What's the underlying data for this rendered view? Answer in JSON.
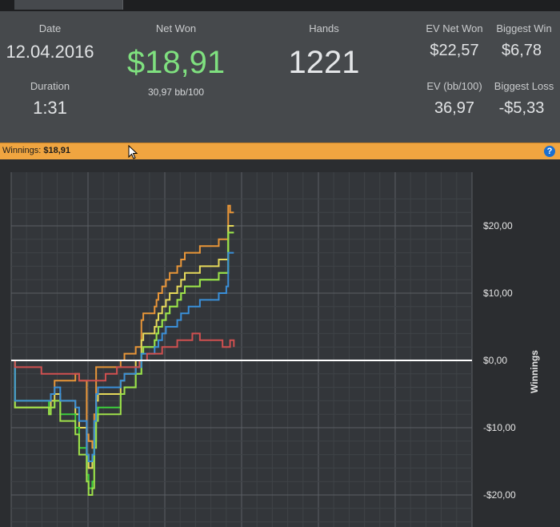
{
  "stats": {
    "date_label": "Date",
    "date_value": "12.04.2016",
    "duration_label": "Duration",
    "duration_value": "1:31",
    "net_won_label": "Net Won",
    "net_won_value": "$18,91",
    "bb_per_100": "30,97 bb/100",
    "hands_label": "Hands",
    "hands_value": "1221",
    "ev_net_won_label": "EV Net Won",
    "ev_net_won_value": "$22,57",
    "biggest_win_label": "Biggest Win",
    "biggest_win_value": "$6,78",
    "ev_bb_label": "EV (bb/100)",
    "ev_bb_value": "36,97",
    "biggest_loss_label": "Biggest Loss",
    "biggest_loss_value": "-$5,33"
  },
  "winnings_bar": {
    "label": "Winnings:",
    "value": "$18,91",
    "help_icon": "?"
  },
  "colors": {
    "orange": "#e89538",
    "yellow": "#e6d95a",
    "green": "#3ccf3c",
    "lightgreen": "#9fe04a",
    "blue": "#3a8fd8",
    "red": "#d05050",
    "zero": "#ffffff"
  },
  "chart_data": {
    "type": "line",
    "ylabel": "Winnings",
    "yticks": [
      "$20,00",
      "$10,00",
      "$0,00",
      "-$10,00",
      "-$20,00"
    ],
    "ylim": [
      -21,
      24
    ],
    "xlim": [
      0,
      1221
    ],
    "grid": true,
    "series": [
      {
        "color_key": "orange",
        "x": [
          0,
          10,
          100,
          105,
          115,
          130,
          170,
          180,
          200,
          205,
          215,
          220,
          225,
          230,
          290,
          300,
          330,
          345,
          350,
          360,
          380,
          385,
          390,
          400,
          410,
          420,
          440,
          450,
          460,
          470,
          500,
          520,
          550,
          560,
          570,
          575,
          580,
          590
        ],
        "y": [
          0,
          -6,
          -6,
          -5,
          -3,
          -3,
          -2,
          -3,
          -11,
          -12,
          -13,
          -8,
          -1,
          -1,
          0,
          1,
          2,
          6,
          7,
          7,
          8,
          9,
          10,
          11,
          12,
          13,
          14,
          15,
          16,
          16,
          17,
          17,
          18,
          18,
          18,
          23,
          22,
          22
        ]
      },
      {
        "color_key": "yellow",
        "x": [
          0,
          10,
          100,
          105,
          115,
          130,
          170,
          180,
          200,
          205,
          215,
          220,
          225,
          230,
          290,
          300,
          330,
          345,
          350,
          360,
          380,
          385,
          390,
          400,
          410,
          420,
          440,
          450,
          460,
          470,
          500,
          520,
          550,
          560,
          570,
          575,
          580,
          590
        ],
        "y": [
          0,
          -7,
          -7,
          -6,
          -5,
          -6,
          -8,
          -10,
          -14,
          -16,
          -15,
          -10,
          -6,
          -5,
          -3,
          -2,
          0,
          3,
          4,
          4,
          5,
          6,
          7,
          8,
          9,
          10,
          11,
          12,
          13,
          13,
          14,
          14,
          15,
          15,
          15,
          20,
          20,
          20
        ]
      },
      {
        "color_key": "green",
        "x": [
          0,
          10,
          100,
          105,
          115,
          130,
          170,
          180,
          200,
          205,
          215,
          220,
          225,
          230,
          290,
          300,
          330,
          345,
          350,
          360,
          380,
          385,
          390,
          400,
          410,
          420,
          440,
          450,
          460,
          470,
          500,
          520,
          550,
          560,
          570,
          575,
          580,
          590
        ],
        "y": [
          0,
          -6,
          -8,
          -7,
          -6,
          -8,
          -10,
          -13,
          -17,
          -19,
          -18,
          -12,
          -8,
          -7,
          -5,
          -4,
          -2,
          1,
          2,
          2,
          3,
          4,
          5,
          6,
          7,
          8,
          9,
          10,
          11,
          11,
          12,
          12,
          13,
          13,
          13,
          19,
          19,
          19
        ]
      },
      {
        "color_key": "lightgreen",
        "x": [
          0,
          10,
          100,
          105,
          115,
          130,
          170,
          180,
          200,
          205,
          215,
          220,
          225,
          230,
          290,
          300,
          330,
          345,
          350,
          360,
          380,
          385,
          390,
          400,
          410,
          420,
          440,
          450,
          460,
          470,
          500,
          520,
          550,
          560,
          570,
          575,
          580,
          590
        ],
        "y": [
          0,
          -7,
          -8,
          -7,
          -6,
          -9,
          -11,
          -14,
          -18,
          -20,
          -19,
          -13,
          -9,
          -8,
          -5,
          -4,
          -2,
          1,
          2,
          2,
          3,
          4,
          5,
          6,
          7,
          8,
          9,
          10,
          11,
          11,
          12,
          12,
          13,
          13,
          13,
          19,
          19,
          19
        ]
      },
      {
        "color_key": "blue",
        "x": [
          0,
          10,
          100,
          105,
          115,
          130,
          170,
          180,
          200,
          205,
          215,
          220,
          225,
          230,
          290,
          300,
          330,
          345,
          350,
          360,
          380,
          385,
          390,
          400,
          410,
          420,
          440,
          450,
          460,
          470,
          500,
          520,
          550,
          560,
          570,
          575,
          580,
          590
        ],
        "y": [
          0,
          -6,
          -6,
          -5,
          -4,
          -6,
          -7,
          -9,
          -14,
          -15,
          -14,
          -9,
          -5,
          -4,
          -3,
          -2,
          -1,
          1,
          1,
          1,
          2,
          2,
          3,
          4,
          5,
          5,
          6,
          7,
          7,
          8,
          9,
          9,
          10,
          10,
          11,
          16,
          16,
          16
        ]
      },
      {
        "color_key": "red",
        "x": [
          0,
          10,
          50,
          80,
          120,
          150,
          180,
          200,
          220,
          250,
          280,
          300,
          320,
          340,
          360,
          380,
          400,
          420,
          440,
          460,
          480,
          500,
          520,
          540,
          560,
          580,
          590
        ],
        "y": [
          0,
          -1,
          -1,
          -2,
          -2,
          -2,
          -3,
          -3,
          -3,
          -2,
          -1,
          -1,
          -1,
          0,
          1,
          1,
          2,
          2,
          3,
          3,
          4,
          3,
          3,
          3,
          2,
          3,
          2
        ]
      }
    ]
  }
}
